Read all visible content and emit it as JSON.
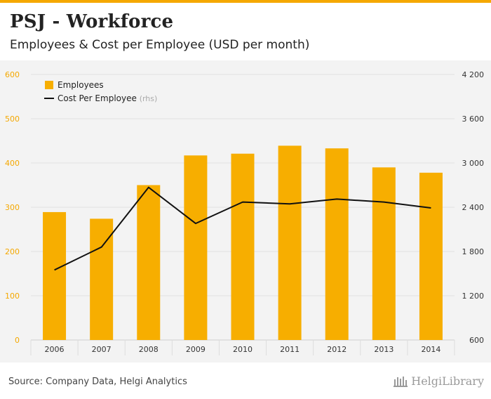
{
  "header": {
    "title": "PSJ - Workforce",
    "subtitle": "Employees & Cost per Employee (USD per month)"
  },
  "footer": {
    "source": "Source: Company Data, Helgi Analytics",
    "brand": "HelgiLibrary"
  },
  "colors": {
    "accent": "#f5a800",
    "bar": "#f7ae00",
    "line": "#111111",
    "left_axis_text": "#f5a800",
    "right_axis_text": "#333333"
  },
  "chart_data": {
    "type": "bar",
    "categories": [
      "2006",
      "2007",
      "2008",
      "2009",
      "2010",
      "2011",
      "2012",
      "2013",
      "2014"
    ],
    "series": [
      {
        "name": "Employees",
        "type": "bar",
        "axis": "left",
        "values": [
          289,
          274,
          350,
          417,
          421,
          439,
          433,
          390,
          378
        ]
      },
      {
        "name": "Cost Per Employee",
        "legend_note": "(rhs)",
        "type": "line",
        "axis": "right",
        "values": [
          1550,
          1860,
          2670,
          2180,
          2470,
          2445,
          2510,
          2470,
          2390
        ]
      }
    ],
    "ylim_left": [
      0,
      600
    ],
    "yticks_left": [
      0,
      100,
      200,
      300,
      400,
      500,
      600
    ],
    "ylim_right": [
      600,
      4200
    ],
    "yticks_right": [
      600,
      1200,
      1800,
      2400,
      3000,
      3600,
      4200
    ],
    "yticks_right_labels": [
      "600",
      "1 200",
      "1 800",
      "2 400",
      "3 000",
      "3 600",
      "4 200"
    ],
    "grid": true,
    "legend_position": "top-left"
  }
}
